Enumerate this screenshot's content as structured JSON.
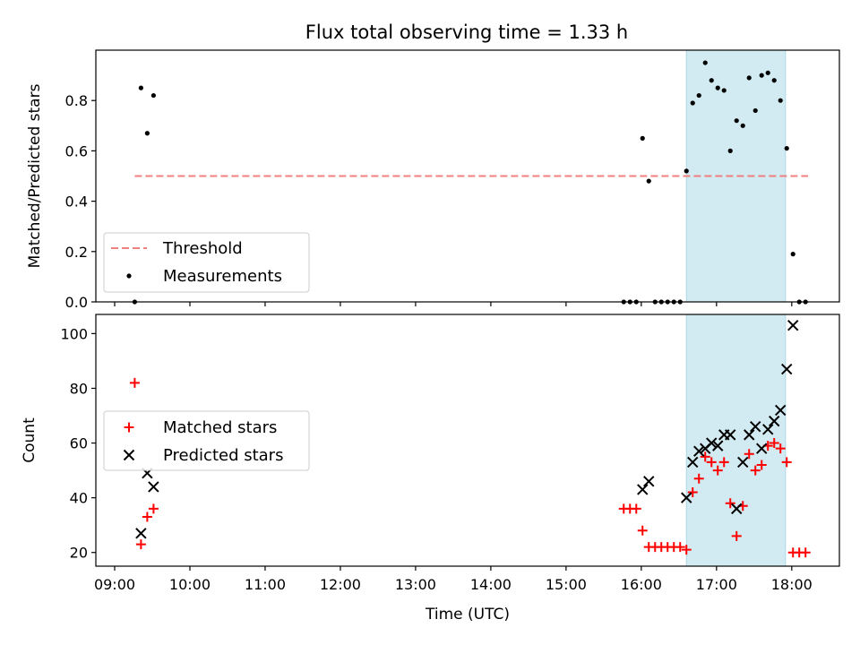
{
  "chart_data": {
    "title": "Flux total observing time = 1.33 h",
    "xlabel": "Time (UTC)",
    "x_ticks": [
      "09:00",
      "10:00",
      "11:00",
      "12:00",
      "13:00",
      "14:00",
      "15:00",
      "16:00",
      "17:00",
      "18:00"
    ],
    "xlim": [
      "08:45",
      "18:38"
    ],
    "highlight_span": [
      "16:36",
      "17:55"
    ],
    "colors": {
      "threshold": "#f08080",
      "measurement": "#000000",
      "matched": "#ff0000",
      "predicted": "#000000",
      "span_fill": "#add8e6"
    },
    "panels": [
      {
        "type": "scatter",
        "ylabel": "Matched/Predicted stars",
        "ylim": [
          0,
          1.0
        ],
        "y_ticks": [
          "0.0",
          "0.2",
          "0.4",
          "0.6",
          "0.8"
        ],
        "y_tick_values": [
          0,
          0.2,
          0.4,
          0.6,
          0.8
        ],
        "legend_position": "lower left",
        "series": [
          {
            "name": "Threshold",
            "type": "line",
            "style": "dashed",
            "x": [
              "09:16",
              "18:13"
            ],
            "y": [
              0.5,
              0.5
            ]
          },
          {
            "name": "Measurements",
            "type": "scatter",
            "marker": "dot",
            "x": [
              "09:16",
              "09:21",
              "09:26",
              "09:31",
              "15:46",
              "15:51",
              "15:56",
              "16:01",
              "16:06",
              "16:11",
              "16:16",
              "16:21",
              "16:26",
              "16:31",
              "16:36",
              "16:41",
              "16:46",
              "16:51",
              "16:56",
              "17:01",
              "17:06",
              "17:11",
              "17:16",
              "17:21",
              "17:26",
              "17:31",
              "17:36",
              "17:41",
              "17:46",
              "17:51",
              "17:56",
              "18:01",
              "18:06",
              "18:11"
            ],
            "y": [
              0.0,
              0.85,
              0.67,
              0.82,
              0.0,
              0.0,
              0.0,
              0.65,
              0.48,
              0.0,
              0.0,
              0.0,
              0.0,
              0.0,
              0.52,
              0.79,
              0.82,
              0.95,
              0.88,
              0.85,
              0.84,
              0.6,
              0.72,
              0.7,
              0.89,
              0.76,
              0.9,
              0.91,
              0.88,
              0.8,
              0.61,
              0.19,
              0.0,
              0.0
            ]
          }
        ]
      },
      {
        "type": "scatter",
        "ylabel": "Count",
        "ylim": [
          15,
          107
        ],
        "y_ticks": [
          "20",
          "40",
          "60",
          "80",
          "100"
        ],
        "y_tick_values": [
          20,
          40,
          60,
          80,
          100
        ],
        "legend_position": "center left",
        "series": [
          {
            "name": "Matched stars",
            "type": "scatter",
            "marker": "plus",
            "x": [
              "09:16",
              "09:21",
              "09:26",
              "09:31",
              "15:46",
              "15:51",
              "15:56",
              "16:01",
              "16:06",
              "16:11",
              "16:16",
              "16:21",
              "16:26",
              "16:31",
              "16:36",
              "16:41",
              "16:46",
              "16:51",
              "16:56",
              "17:01",
              "17:06",
              "17:11",
              "17:16",
              "17:21",
              "17:26",
              "17:31",
              "17:36",
              "17:41",
              "17:46",
              "17:51",
              "17:56",
              "18:01",
              "18:06",
              "18:11"
            ],
            "y": [
              82,
              23,
              33,
              36,
              36,
              36,
              36,
              28,
              22,
              22,
              22,
              22,
              22,
              22,
              21,
              42,
              47,
              55,
              53,
              50,
              53,
              38,
              26,
              37,
              56,
              50,
              52,
              59,
              60,
              58,
              53,
              20,
              20,
              20
            ]
          },
          {
            "name": "Predicted stars",
            "type": "scatter",
            "marker": "x",
            "x": [
              "09:21",
              "09:26",
              "09:31",
              "16:01",
              "16:06",
              "16:36",
              "16:41",
              "16:46",
              "16:51",
              "16:56",
              "17:01",
              "17:06",
              "17:11",
              "17:16",
              "17:21",
              "17:26",
              "17:31",
              "17:36",
              "17:41",
              "17:46",
              "17:51",
              "17:56",
              "18:01"
            ],
            "y": [
              27,
              49,
              44,
              43,
              46,
              40,
              53,
              57,
              58,
              60,
              59,
              63,
              63,
              36,
              53,
              63,
              66,
              58,
              65,
              68,
              72,
              87,
              103
            ]
          }
        ]
      }
    ]
  }
}
